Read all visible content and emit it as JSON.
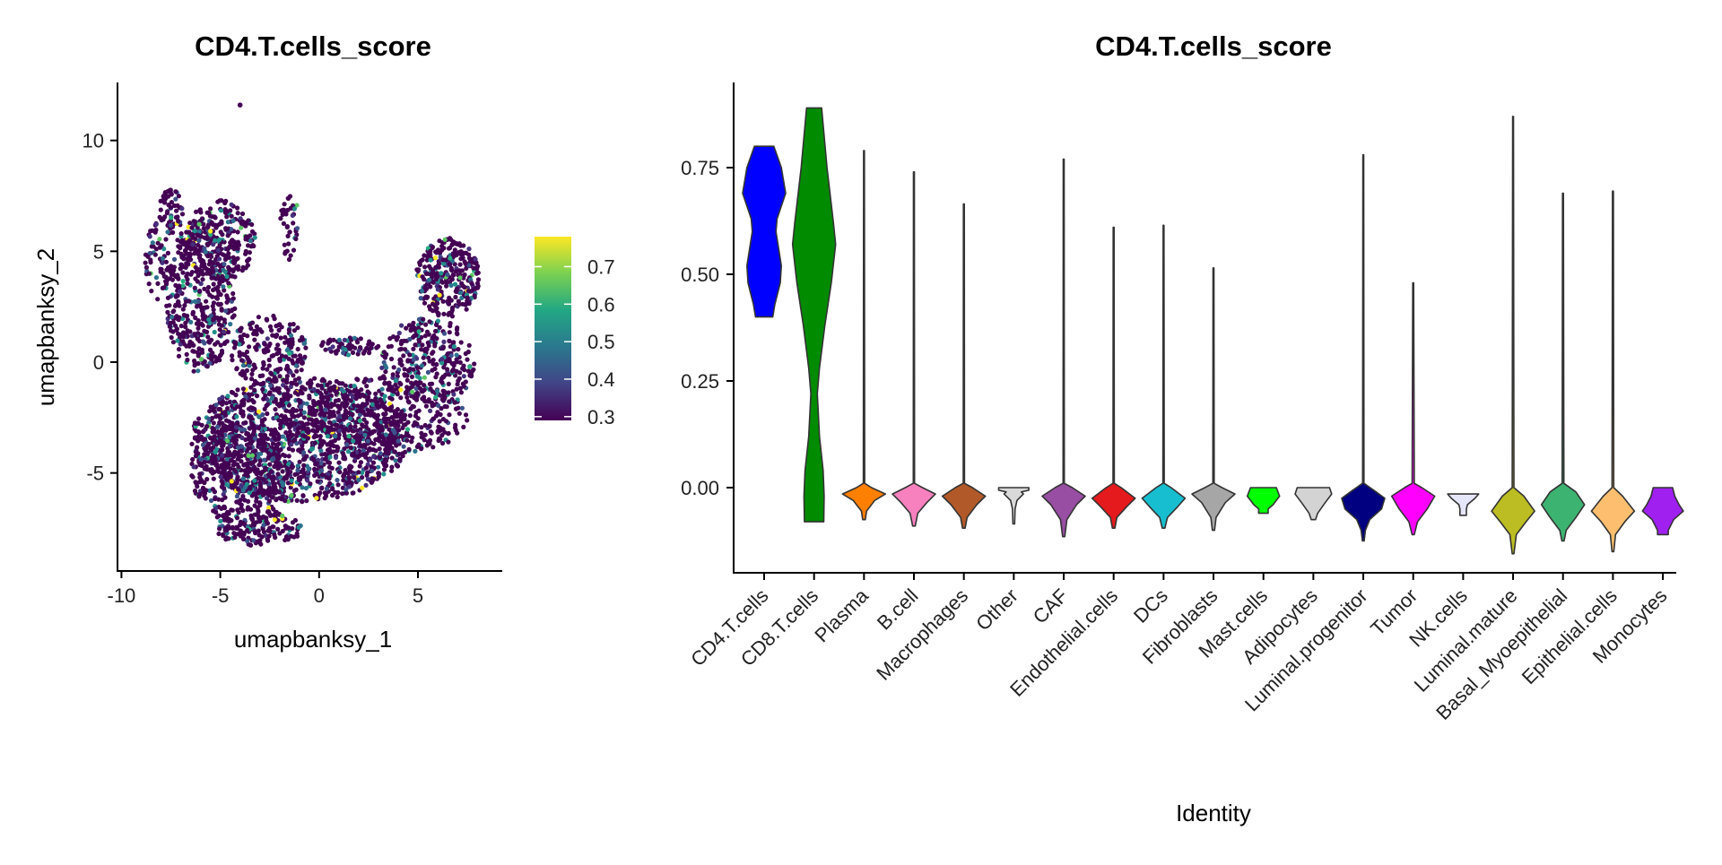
{
  "chart_data": [
    {
      "type": "scatter",
      "title": "CD4.T.cells_score",
      "xlabel": "umapbanksy_1",
      "ylabel": "umapbanksy_2",
      "xlim": [
        -10.2,
        9.3
      ],
      "ylim": [
        -9.4,
        12.6
      ],
      "xticks": [
        "-10",
        "-5",
        "0",
        "5"
      ],
      "xtick_values": [
        -10,
        -5,
        0,
        5
      ],
      "yticks": [
        "-5",
        "0",
        "5",
        "10"
      ],
      "ytick_values": [
        -5,
        0,
        5,
        10
      ],
      "colorbar": {
        "palette": "viridis",
        "range": [
          0.29,
          0.78
        ],
        "ticks": [
          "0.3",
          "0.4",
          "0.5",
          "0.6",
          "0.7"
        ],
        "tick_values": [
          0.3,
          0.4,
          0.5,
          0.6,
          0.7
        ]
      },
      "grid": false
    },
    {
      "type": "violin",
      "title": "CD4.T.cells_score",
      "xlabel": "Identity",
      "ylabel": "",
      "ylim": [
        -0.19,
        0.95
      ],
      "yticks": [
        "0.00",
        "0.25",
        "0.50",
        "0.75"
      ],
      "ytick_values": [
        0,
        0.25,
        0.5,
        0.75
      ],
      "grid": false,
      "categories": [
        {
          "name": "CD4.T.cells",
          "color": "#0000FF",
          "density": [
            [
              0.8,
              0.45
            ],
            [
              0.75,
              0.8
            ],
            [
              0.69,
              1.0
            ],
            [
              0.63,
              0.6
            ],
            [
              0.6,
              0.55
            ],
            [
              0.52,
              0.8
            ],
            [
              0.48,
              0.75
            ],
            [
              0.43,
              0.5
            ],
            [
              0.4,
              0.4
            ]
          ]
        },
        {
          "name": "CD8.T.cells",
          "color": "#008B00",
          "density": [
            [
              0.89,
              0.35
            ],
            [
              0.75,
              0.6
            ],
            [
              0.62,
              0.9
            ],
            [
              0.57,
              1.0
            ],
            [
              0.48,
              0.8
            ],
            [
              0.38,
              0.5
            ],
            [
              0.28,
              0.25
            ],
            [
              0.22,
              0.15
            ],
            [
              0.12,
              0.25
            ],
            [
              0.04,
              0.42
            ],
            [
              -0.02,
              0.47
            ],
            [
              -0.08,
              0.45
            ]
          ]
        },
        {
          "name": "Plasma",
          "color": "#FF7F00",
          "density": [
            [
              0.79,
              0.02
            ],
            [
              0.01,
              0.03
            ],
            [
              0.0,
              0.35
            ],
            [
              -0.015,
              1.0
            ],
            [
              -0.03,
              0.5
            ],
            [
              -0.055,
              0.12
            ],
            [
              -0.075,
              0.06
            ]
          ]
        },
        {
          "name": "B.cell",
          "color": "#F781BF",
          "density": [
            [
              0.74,
              0.02
            ],
            [
              0.01,
              0.03
            ],
            [
              0.0,
              0.4
            ],
            [
              -0.015,
              1.0
            ],
            [
              -0.035,
              0.6
            ],
            [
              -0.06,
              0.18
            ],
            [
              -0.09,
              0.06
            ]
          ]
        },
        {
          "name": "Macrophages",
          "color": "#B15928",
          "density": [
            [
              0.665,
              0.02
            ],
            [
              0.01,
              0.03
            ],
            [
              0.0,
              0.4
            ],
            [
              -0.02,
              1.0
            ],
            [
              -0.04,
              0.6
            ],
            [
              -0.07,
              0.15
            ],
            [
              -0.095,
              0.06
            ]
          ]
        },
        {
          "name": "Other",
          "color": "#D9D9D9",
          "density": [
            [
              0.0,
              0.7
            ],
            [
              -0.006,
              0.7
            ],
            [
              -0.01,
              0.35
            ],
            [
              -0.015,
              0.45
            ],
            [
              -0.03,
              0.15
            ],
            [
              -0.05,
              0.06
            ],
            [
              -0.085,
              0.04
            ]
          ]
        },
        {
          "name": "CAF",
          "color": "#984EA3",
          "density": [
            [
              0.77,
              0.02
            ],
            [
              0.01,
              0.03
            ],
            [
              0.0,
              0.4
            ],
            [
              -0.02,
              1.0
            ],
            [
              -0.04,
              0.6
            ],
            [
              -0.075,
              0.15
            ],
            [
              -0.115,
              0.05
            ]
          ]
        },
        {
          "name": "Endothelial.cells",
          "color": "#E41A1C",
          "density": [
            [
              0.61,
              0.02
            ],
            [
              0.01,
              0.03
            ],
            [
              0.0,
              0.35
            ],
            [
              -0.025,
              1.0
            ],
            [
              -0.045,
              0.6
            ],
            [
              -0.07,
              0.15
            ],
            [
              -0.095,
              0.06
            ]
          ]
        },
        {
          "name": "DCs",
          "color": "#17BECF",
          "density": [
            [
              0.615,
              0.02
            ],
            [
              0.01,
              0.03
            ],
            [
              0.0,
              0.35
            ],
            [
              -0.025,
              1.0
            ],
            [
              -0.045,
              0.65
            ],
            [
              -0.07,
              0.18
            ],
            [
              -0.095,
              0.06
            ]
          ]
        },
        {
          "name": "Fibroblasts",
          "color": "#A6A6A6",
          "density": [
            [
              0.515,
              0.02
            ],
            [
              0.01,
              0.03
            ],
            [
              0.0,
              0.4
            ],
            [
              -0.015,
              1.0
            ],
            [
              -0.035,
              0.55
            ],
            [
              -0.07,
              0.12
            ],
            [
              -0.1,
              0.05
            ]
          ]
        },
        {
          "name": "Mast.cells",
          "color": "#00FF00",
          "density": [
            [
              0.0,
              0.6
            ],
            [
              -0.02,
              0.75
            ],
            [
              -0.04,
              0.45
            ],
            [
              -0.05,
              0.22
            ],
            [
              -0.06,
              0.22
            ]
          ]
        },
        {
          "name": "Adipocytes",
          "color": "#D3D3D3",
          "density": [
            [
              0.0,
              0.75
            ],
            [
              -0.015,
              0.85
            ],
            [
              -0.035,
              0.55
            ],
            [
              -0.06,
              0.2
            ],
            [
              -0.075,
              0.1
            ]
          ]
        },
        {
          "name": "Luminal.progenitor",
          "color": "#000080",
          "density": [
            [
              0.78,
              0.02
            ],
            [
              0.01,
              0.03
            ],
            [
              -0.01,
              0.6
            ],
            [
              -0.025,
              1.0
            ],
            [
              -0.05,
              0.85
            ],
            [
              -0.075,
              0.3
            ],
            [
              -0.1,
              0.1
            ],
            [
              -0.125,
              0.04
            ]
          ]
        },
        {
          "name": "Tumor",
          "color": "#FF00FF",
          "density": [
            [
              0.48,
              0.02
            ],
            [
              0.01,
              0.05
            ],
            [
              0.0,
              0.4
            ],
            [
              -0.02,
              1.0
            ],
            [
              -0.05,
              0.65
            ],
            [
              -0.08,
              0.2
            ],
            [
              -0.11,
              0.05
            ]
          ]
        },
        {
          "name": "NK.cells",
          "color": "#E6E6FA",
          "density": [
            [
              -0.015,
              0.72
            ],
            [
              -0.025,
              0.55
            ],
            [
              -0.04,
              0.2
            ],
            [
              -0.05,
              0.15
            ],
            [
              -0.065,
              0.15
            ]
          ]
        },
        {
          "name": "Luminal.mature",
          "color": "#BCBD22",
          "density": [
            [
              0.87,
              0.02
            ],
            [
              0.0,
              0.04
            ],
            [
              -0.02,
              0.5
            ],
            [
              -0.055,
              1.0
            ],
            [
              -0.08,
              0.6
            ],
            [
              -0.11,
              0.15
            ],
            [
              -0.155,
              0.04
            ]
          ]
        },
        {
          "name": "Basal_Myoepithelial",
          "color": "#3CB371",
          "density": [
            [
              0.69,
              0.02
            ],
            [
              0.01,
              0.04
            ],
            [
              -0.01,
              0.6
            ],
            [
              -0.04,
              1.0
            ],
            [
              -0.07,
              0.6
            ],
            [
              -0.1,
              0.15
            ],
            [
              -0.125,
              0.05
            ]
          ]
        },
        {
          "name": "Epithelial.cells",
          "color": "#FDBF6F",
          "density": [
            [
              0.695,
              0.02
            ],
            [
              0.0,
              0.04
            ],
            [
              -0.02,
              0.45
            ],
            [
              -0.055,
              1.0
            ],
            [
              -0.08,
              0.55
            ],
            [
              -0.11,
              0.12
            ],
            [
              -0.15,
              0.04
            ]
          ]
        },
        {
          "name": "Monocytes",
          "color": "#A020F0",
          "density": [
            [
              0.0,
              0.45
            ],
            [
              -0.02,
              0.55
            ],
            [
              -0.04,
              0.75
            ],
            [
              -0.055,
              0.95
            ],
            [
              -0.075,
              0.5
            ],
            [
              -0.1,
              0.25
            ],
            [
              -0.11,
              0.25
            ]
          ]
        }
      ]
    }
  ]
}
